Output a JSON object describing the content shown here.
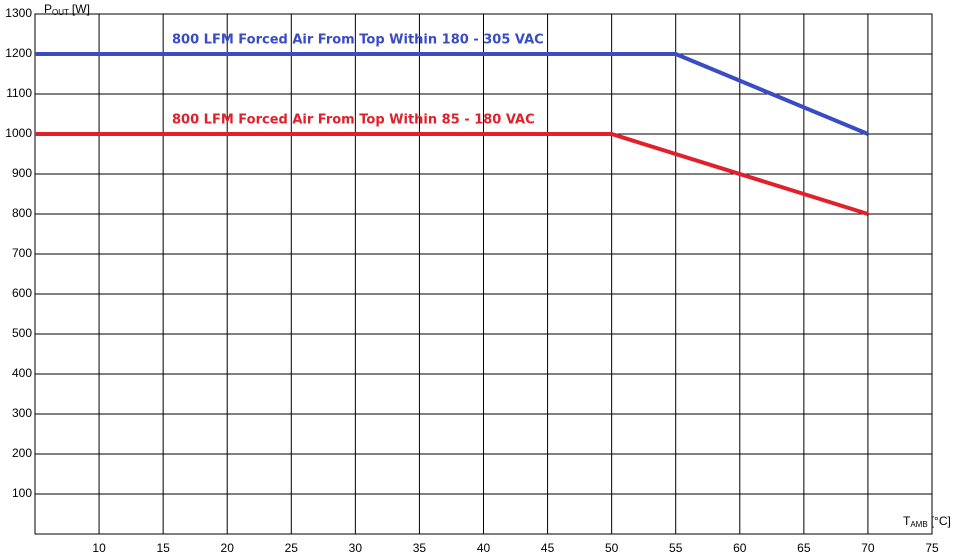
{
  "chart_data": {
    "type": "line",
    "ylabel": {
      "symbol": "P",
      "subscript": "OUT",
      "unit": "[W]"
    },
    "xlabel": {
      "symbol": "T",
      "subscript": "AMB",
      "unit": "[°C]"
    },
    "xlim": [
      5,
      75
    ],
    "xticks": [
      10,
      15,
      20,
      25,
      30,
      35,
      40,
      45,
      50,
      55,
      60,
      65,
      70,
      75
    ],
    "ylim": [
      0,
      1300
    ],
    "yticks": [
      100,
      200,
      300,
      400,
      500,
      600,
      700,
      800,
      900,
      1000,
      1100,
      1200,
      1300
    ],
    "grid": true,
    "series": [
      {
        "name": "800 LFM Forced Air From Top Within 180 - 305 VAC",
        "color": "#3a4cc4",
        "x": [
          5,
          55,
          70
        ],
        "values": [
          1200,
          1200,
          1000
        ]
      },
      {
        "name": "800 LFM Forced Air From Top Within 85 - 180 VAC",
        "color": "#e0202a",
        "x": [
          5,
          50,
          70
        ],
        "values": [
          1000,
          1000,
          800
        ]
      }
    ]
  }
}
